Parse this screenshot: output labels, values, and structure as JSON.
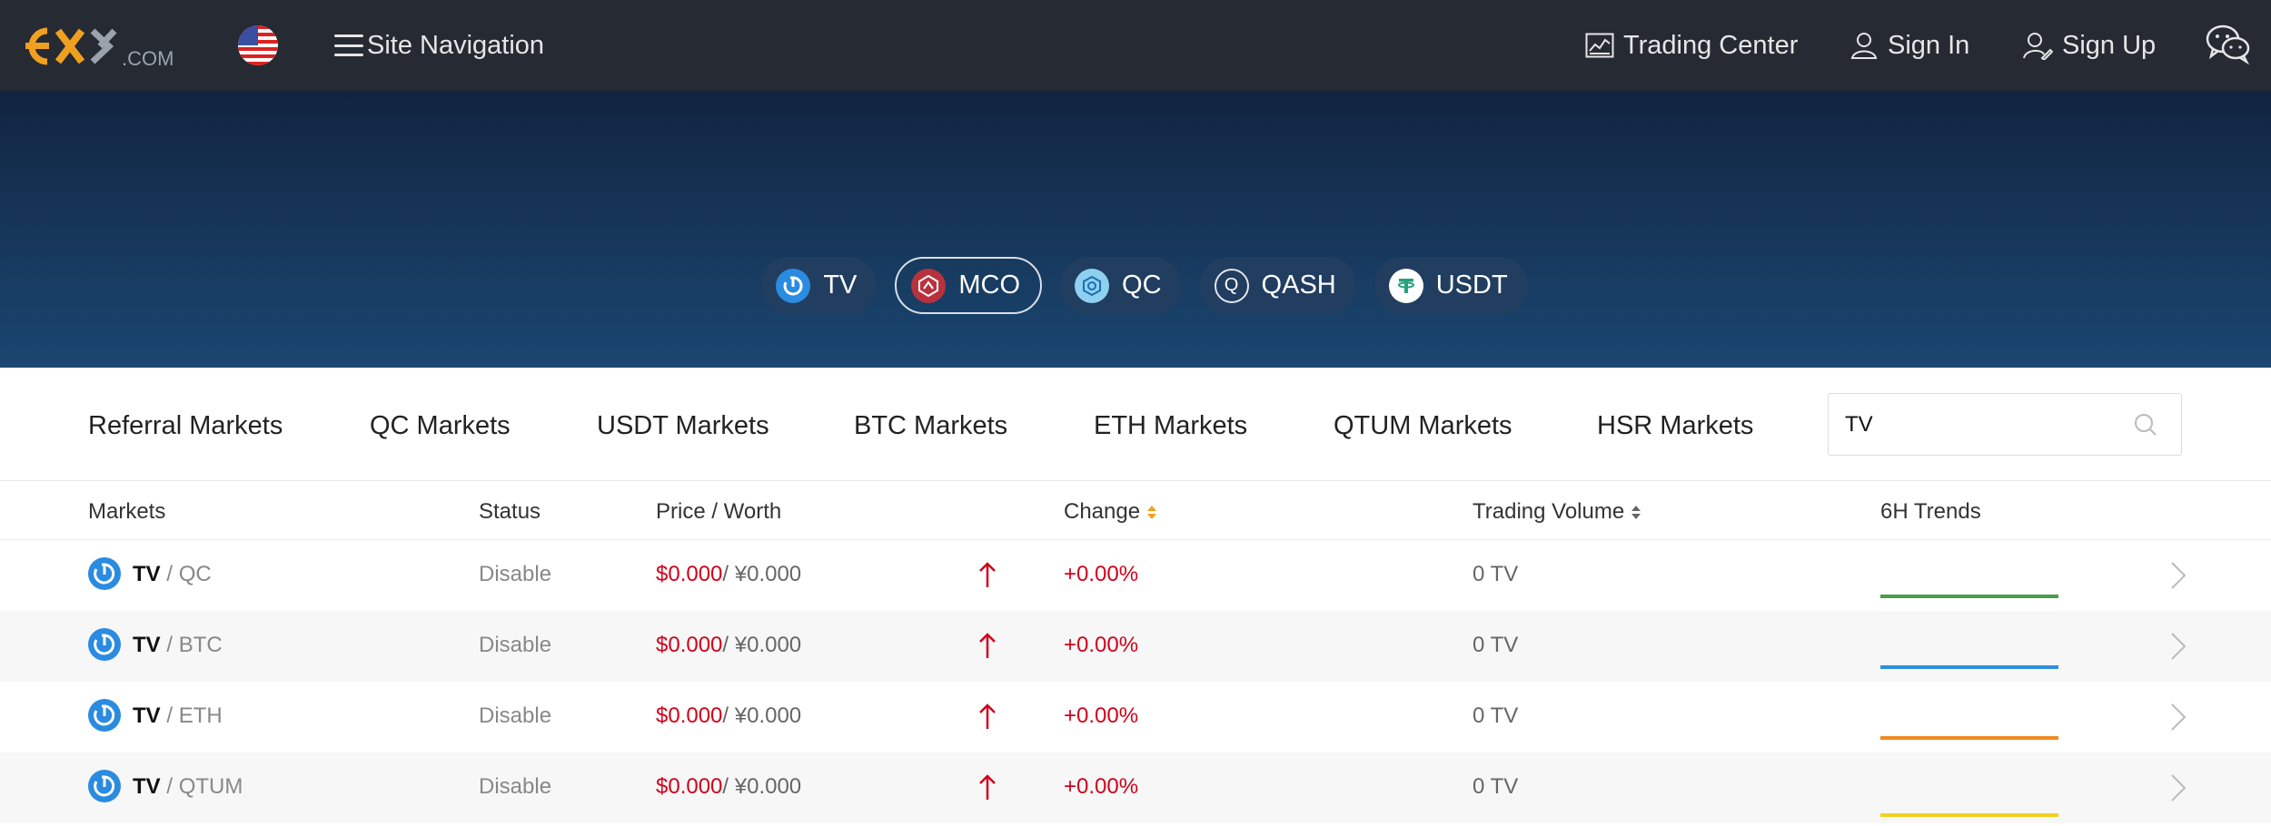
{
  "header": {
    "logo_text": "EXX.com",
    "site_nav_label": "Site Navigation",
    "trading_center": "Trading Center",
    "sign_in": "Sign In",
    "sign_up": "Sign Up"
  },
  "coins": [
    {
      "label": "TV",
      "icon": "tv-coin-icon",
      "active": false
    },
    {
      "label": "MCO",
      "icon": "mco-coin-icon",
      "active": true
    },
    {
      "label": "QC",
      "icon": "qc-coin-icon",
      "active": false
    },
    {
      "label": "QASH",
      "icon": "qash-coin-icon",
      "active": false
    },
    {
      "label": "USDT",
      "icon": "usdt-coin-icon",
      "active": false
    }
  ],
  "tabs": [
    "Referral Markets",
    "QC Markets",
    "USDT Markets",
    "BTC Markets",
    "ETH Markets",
    "QTUM Markets",
    "HSR Markets"
  ],
  "search": {
    "value": "TV"
  },
  "columns": {
    "markets": "Markets",
    "status": "Status",
    "price": "Price / Worth",
    "change": "Change",
    "volume": "Trading Volume",
    "trends": "6H Trends"
  },
  "rows": [
    {
      "base": "TV",
      "sep": " / ",
      "quote": "QC",
      "status": "Disable",
      "price": "$0.000",
      "worth": "/ ¥0.000",
      "change": "+0.00%",
      "volume": "0 TV",
      "trend_color": "#4a9d4a"
    },
    {
      "base": "TV",
      "sep": " / ",
      "quote": "BTC",
      "status": "Disable",
      "price": "$0.000",
      "worth": "/ ¥0.000",
      "change": "+0.00%",
      "volume": "0 TV",
      "trend_color": "#2f8ee0"
    },
    {
      "base": "TV",
      "sep": " / ",
      "quote": "ETH",
      "status": "Disable",
      "price": "$0.000",
      "worth": "/ ¥0.000",
      "change": "+0.00%",
      "volume": "0 TV",
      "trend_color": "#f08a24"
    },
    {
      "base": "TV",
      "sep": " / ",
      "quote": "QTUM",
      "status": "Disable",
      "price": "$0.000",
      "worth": "/ ¥0.000",
      "change": "+0.00%",
      "volume": "0 TV",
      "trend_color": "#f2d021"
    }
  ],
  "colors": {
    "up": "#d0021b",
    "nav_bg": "#262a33",
    "accent": "#f0a020"
  }
}
